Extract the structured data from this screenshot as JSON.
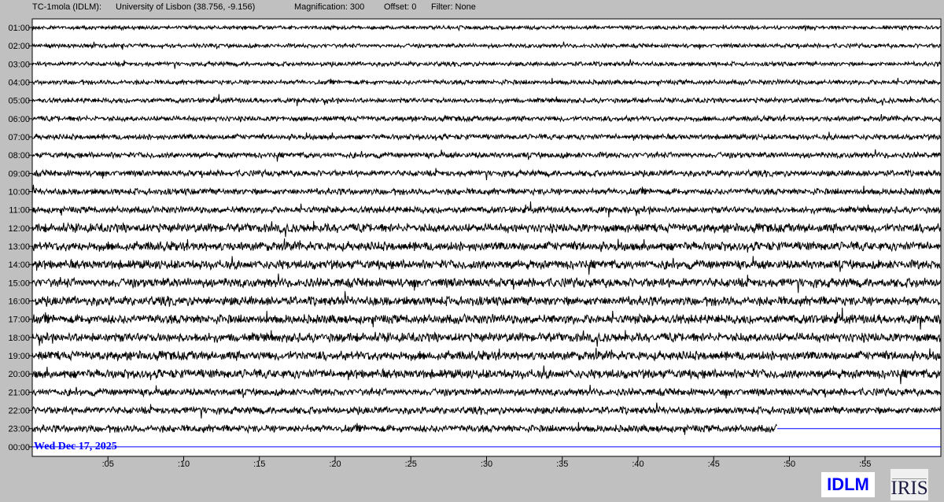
{
  "header": {
    "station": "TC-1mola (IDLM):",
    "location": "University of Lisbon (38.756, -9.156)",
    "magnification": "Magnification: 300",
    "offset": "Offset: 0",
    "filter": "Filter: None"
  },
  "chart_data": {
    "type": "line",
    "subtype": "helicorder",
    "date_label": "Wed Dec 17, 2025",
    "row_labels": [
      "01:00",
      "02:00",
      "03:00",
      "04:00",
      "05:00",
      "06:00",
      "07:00",
      "08:00",
      "09:00",
      "10:00",
      "11:00",
      "12:00",
      "13:00",
      "14:00",
      "15:00",
      "16:00",
      "17:00",
      "18:00",
      "19:00",
      "20:00",
      "21:00",
      "22:00",
      "23:00",
      "00:00"
    ],
    "x_ticks": [
      ":05",
      ":10",
      ":15",
      ":20",
      ":25",
      ":30",
      ":35",
      ":40",
      ":45",
      ":50",
      ":55"
    ],
    "x_range_minutes": [
      0,
      60
    ],
    "last_trace_end_minute": 49.2,
    "trace_color": "#000000",
    "empty_line_color": "#0000ff",
    "date_color": "#0000ff"
  },
  "logos": {
    "station": "IDLM",
    "network": "IRIS"
  }
}
